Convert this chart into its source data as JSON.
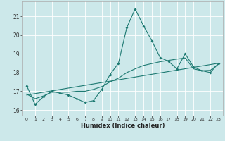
{
  "xlabel": "Humidex (Indice chaleur)",
  "xlim": [
    -0.5,
    23.5
  ],
  "ylim": [
    15.7,
    21.8
  ],
  "yticks": [
    16,
    17,
    18,
    19,
    20,
    21
  ],
  "xticks": [
    0,
    1,
    2,
    3,
    4,
    5,
    6,
    7,
    8,
    9,
    10,
    11,
    12,
    13,
    14,
    15,
    16,
    17,
    18,
    19,
    20,
    21,
    22,
    23
  ],
  "bg_color": "#cce8ea",
  "grid_color": "#ffffff",
  "line_color": "#1e7a72",
  "line1_y": [
    17.3,
    16.3,
    16.7,
    17.0,
    16.9,
    16.8,
    16.6,
    16.4,
    16.5,
    17.1,
    17.9,
    18.5,
    20.4,
    21.4,
    20.5,
    19.7,
    18.8,
    18.6,
    18.2,
    19.0,
    18.3,
    18.1,
    18.0,
    18.5
  ],
  "line2_y": [
    16.85,
    16.6,
    16.75,
    16.95,
    16.95,
    16.95,
    17.0,
    17.0,
    17.1,
    17.25,
    17.5,
    17.7,
    18.0,
    18.2,
    18.38,
    18.48,
    18.58,
    18.65,
    18.72,
    18.78,
    18.2,
    18.1,
    18.12,
    18.45
  ],
  "line3_y": [
    16.8,
    18.5
  ]
}
